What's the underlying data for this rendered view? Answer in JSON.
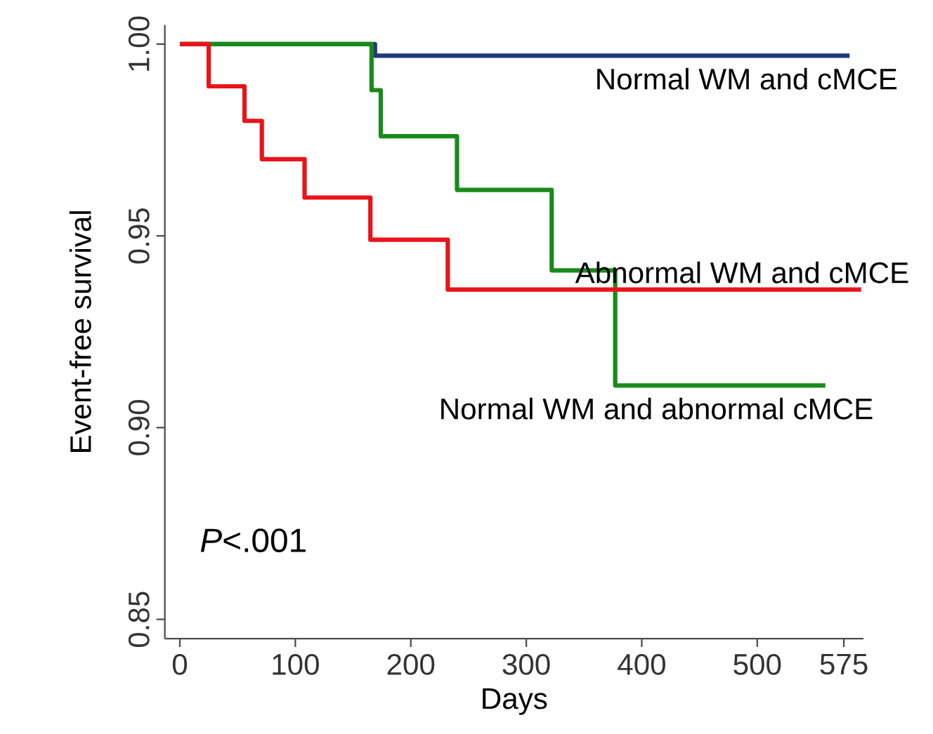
{
  "chart_data": {
    "type": "step",
    "xlabel": "Days",
    "ylabel": "Event-free survival",
    "xlim": [
      -13,
      592
    ],
    "ylim": [
      0.845,
      1.005
    ],
    "xticks": [
      0,
      100,
      200,
      300,
      400,
      500,
      575
    ],
    "yticks": [
      {
        "value": 0.85,
        "label": "0.85"
      },
      {
        "value": 0.9,
        "label": "0.90"
      },
      {
        "value": 0.95,
        "label": "0.95"
      },
      {
        "value": 1.0,
        "label": "1.00"
      }
    ],
    "grid": false,
    "series": [
      {
        "name": "Normal WM and cMCE",
        "color": "#1f3a7a",
        "x": [
          0,
          169,
          580
        ],
        "values": [
          1.0,
          0.997,
          0.997
        ]
      },
      {
        "name": "Normal WM and abnormal cMCE",
        "color": "#1a8a1a",
        "x": [
          0,
          166,
          174,
          240,
          322,
          377,
          559
        ],
        "values": [
          1.0,
          0.988,
          0.976,
          0.962,
          0.941,
          0.911,
          0.911
        ]
      },
      {
        "name": "Abnormal WM and cMCE",
        "color": "#e8141a",
        "x": [
          0,
          25,
          56,
          71,
          108,
          165,
          232,
          590
        ],
        "values": [
          1.0,
          0.989,
          0.98,
          0.97,
          0.96,
          0.949,
          0.936,
          0.936
        ]
      }
    ],
    "annotations": [
      "*P*<.001"
    ]
  }
}
